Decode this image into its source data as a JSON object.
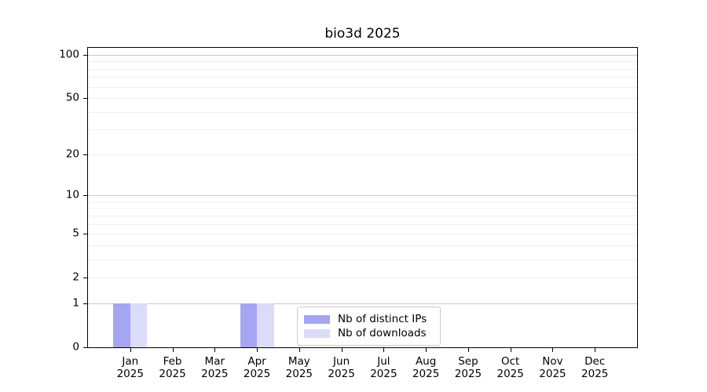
{
  "chart_data": {
    "type": "bar",
    "title": "bio3d 2025",
    "year_label": "2025",
    "categories": [
      "Jan",
      "Feb",
      "Mar",
      "Apr",
      "May",
      "Jun",
      "Jul",
      "Aug",
      "Sep",
      "Oct",
      "Nov",
      "Dec"
    ],
    "series": [
      {
        "name": "Nb of distinct IPs",
        "color": "#a5a5f2",
        "values": [
          1,
          0,
          0,
          1,
          0,
          0,
          0,
          0,
          0,
          0,
          0,
          0
        ]
      },
      {
        "name": "Nb of downloads",
        "color": "#dcdcf8",
        "values": [
          1,
          0,
          0,
          1,
          0,
          0,
          0,
          0,
          0,
          0,
          0,
          0
        ]
      }
    ],
    "xlabel": "",
    "ylabel": "",
    "yscale": "log1p",
    "ylim": [
      0,
      112
    ],
    "yticks": [
      0,
      1,
      2,
      5,
      10,
      20,
      50,
      100
    ],
    "grid": {
      "on": true,
      "major_lines": [
        1,
        10,
        100
      ],
      "minor_lines": [
        2,
        3,
        4,
        5,
        6,
        7,
        8,
        9,
        20,
        30,
        40,
        50,
        60,
        70,
        80,
        90
      ],
      "major_color": "#c9c9c9",
      "minor_color": "#f0f0f0"
    },
    "legend": {
      "position": "inside-bottom-center",
      "entries": [
        "Nb of distinct IPs",
        "Nb of downloads"
      ]
    }
  },
  "colors": {
    "background": "#ffffff",
    "axis": "#000000",
    "text": "#000000",
    "legend_border": "#cccccc"
  }
}
